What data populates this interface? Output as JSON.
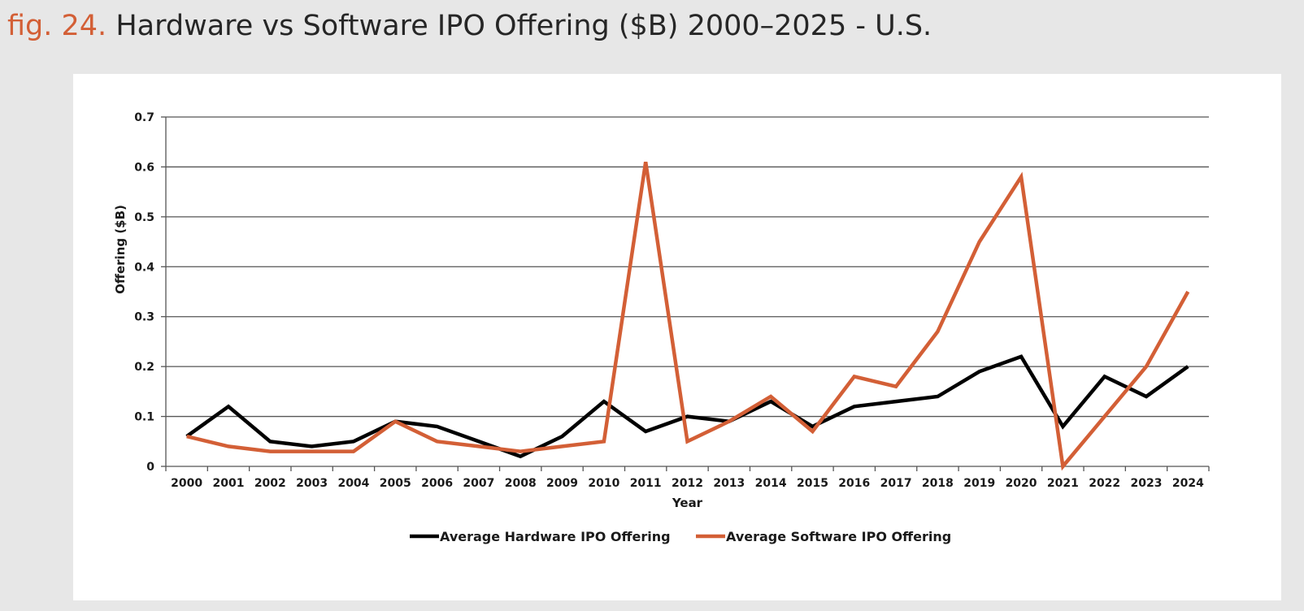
{
  "figure": {
    "prefix": "fig. 24.",
    "title": "Hardware vs Software IPO Offering ($B) 2000–2025 - U.S."
  },
  "colors": {
    "accent": "#d35f36",
    "hardware": "#000000",
    "software": "#d35f36",
    "grid": "#555555",
    "background": "#e7e7e7"
  },
  "chart_data": {
    "type": "line",
    "title": "Hardware vs Software IPO Offering ($B) 2000–2025 - U.S.",
    "xlabel": "Year",
    "ylabel": "Offering ($B)",
    "categories": [
      "2000",
      "2001",
      "2002",
      "2003",
      "2004",
      "2005",
      "2006",
      "2007",
      "2008",
      "2009",
      "2010",
      "2011",
      "2012",
      "2013",
      "2014",
      "2015",
      "2016",
      "2017",
      "2018",
      "2019",
      "2020",
      "2021",
      "2022",
      "2023",
      "2024"
    ],
    "ylim": [
      0,
      0.7
    ],
    "yticks": [
      "0",
      "0.1",
      "0.2",
      "0.3",
      "0.4",
      "0.5",
      "0.6",
      "0.7"
    ],
    "grid": true,
    "legend_position": "bottom",
    "series": [
      {
        "name": "Average Hardware IPO Offering",
        "color": "#000000",
        "values": [
          0.06,
          0.12,
          0.05,
          0.04,
          0.05,
          0.09,
          0.08,
          0.05,
          0.02,
          0.06,
          0.13,
          0.07,
          0.1,
          0.09,
          0.13,
          0.08,
          0.12,
          0.13,
          0.14,
          0.19,
          0.22,
          0.08,
          0.18,
          0.14,
          0.2
        ]
      },
      {
        "name": "Average Software IPO Offering",
        "color": "#d35f36",
        "values": [
          0.06,
          0.04,
          0.03,
          0.03,
          0.03,
          0.09,
          0.05,
          0.04,
          0.03,
          0.04,
          0.05,
          0.61,
          0.05,
          0.09,
          0.14,
          0.07,
          0.18,
          0.16,
          0.27,
          0.45,
          0.58,
          0.0,
          0.1,
          0.2,
          0.35
        ]
      }
    ]
  }
}
